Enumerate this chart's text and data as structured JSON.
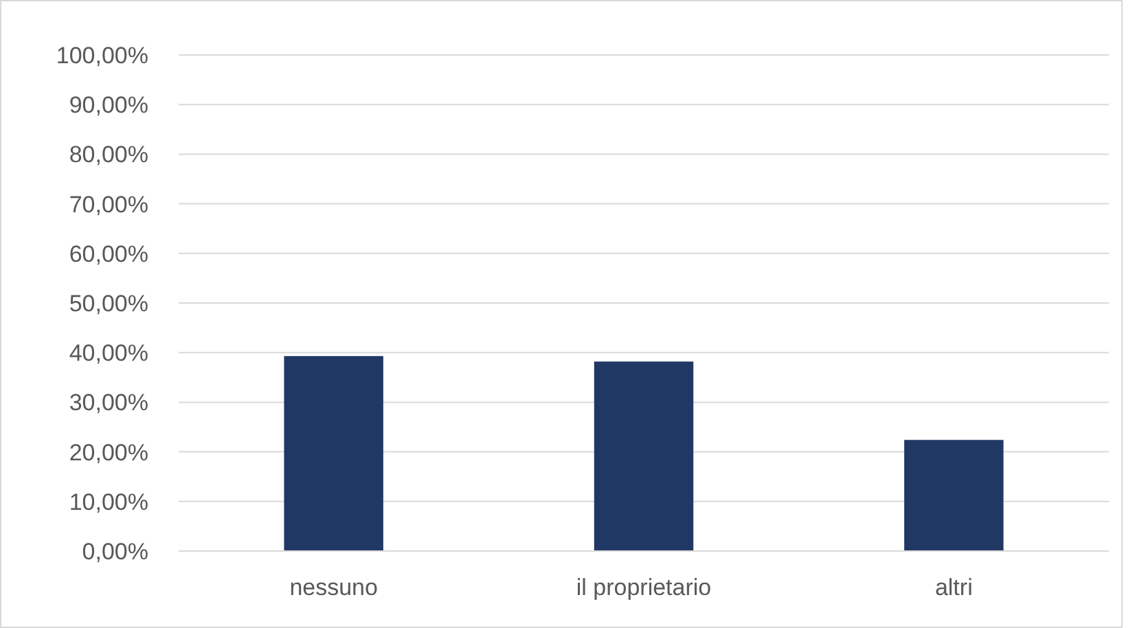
{
  "chart_data": {
    "type": "bar",
    "categories": [
      "nessuno",
      "il proprietario",
      "altri"
    ],
    "values": [
      39.3,
      38.2,
      22.4
    ],
    "color": "#203864",
    "ylim": [
      0,
      100
    ],
    "yticks": [
      {
        "value": 0,
        "label": "0,00%"
      },
      {
        "value": 10,
        "label": "10,00%"
      },
      {
        "value": 20,
        "label": "20,00%"
      },
      {
        "value": 30,
        "label": "30,00%"
      },
      {
        "value": 40,
        "label": "40,00%"
      },
      {
        "value": 50,
        "label": "50,00%"
      },
      {
        "value": 60,
        "label": "60,00%"
      },
      {
        "value": 70,
        "label": "70,00%"
      },
      {
        "value": 80,
        "label": "80,00%"
      },
      {
        "value": 90,
        "label": "90,00%"
      },
      {
        "value": 100,
        "label": "100,00%"
      }
    ],
    "grid": "y"
  }
}
